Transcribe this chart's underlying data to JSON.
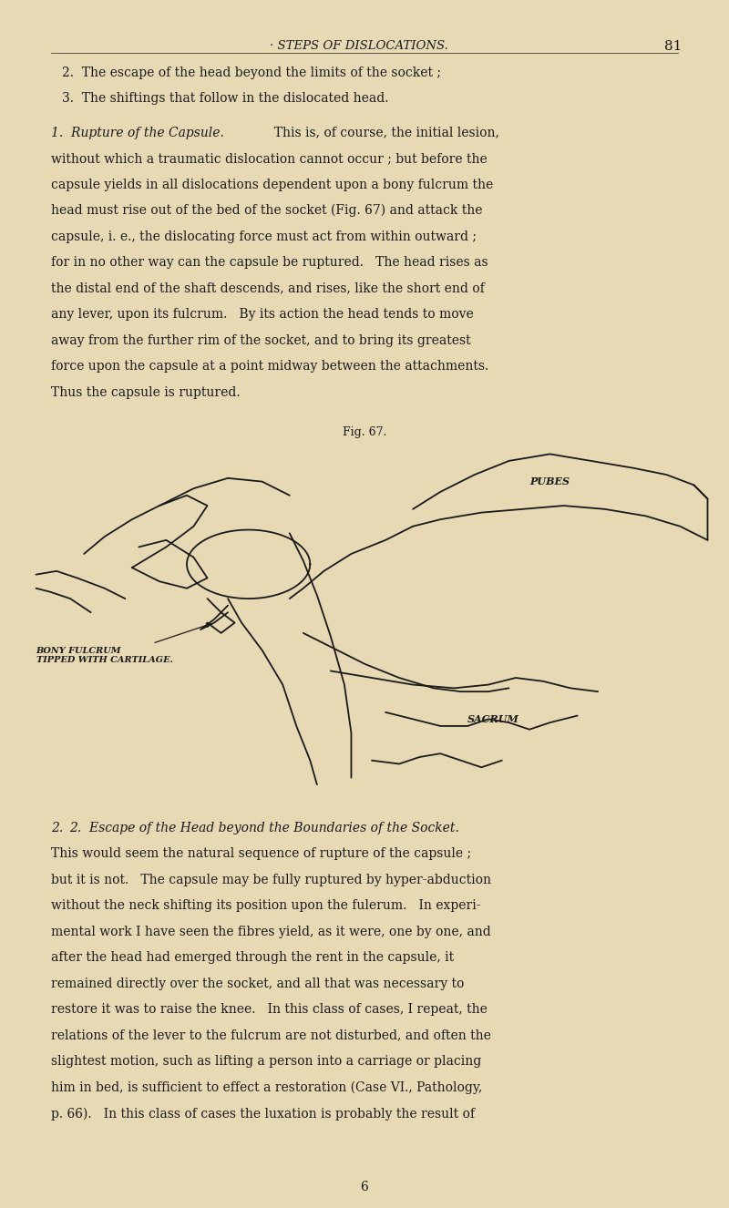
{
  "bg_color": "#e8d9b5",
  "text_color": "#1a1a1a",
  "page_width": 8.0,
  "page_height": 13.26,
  "dpi": 100,
  "header_text": "· STEPS OF DISLOCATIONS.",
  "page_number": "81",
  "line1": "2.  The escape of the head beyond the limits of the socket ;",
  "line2": "3.  The shiftings that follow in the dislocated head.",
  "fig_caption": "Fig. 67.",
  "label_pubes": "PUBES",
  "label_fulcrum": "BONY FULCRUM\nTIPPED WITH CARTILAGE.",
  "label_sacrum": "SACRUM",
  "footer_number": "6",
  "para1_lines": [
    "1.  Rupture of the Capsule.|  This is, of course, the initial lesion,",
    "without which a traumatic dislocation cannot occur ; but before the",
    "capsule yields in all dislocations dependent upon a bony fulcrum the",
    "head must rise out of the bed of the socket (Fig. 67) and attack the",
    "capsule, i. e., the dislocating force must act from within outward ;",
    "for in no other way can the capsule be ruptured.   The head rises as",
    "the distal end of the shaft descends, and rises, like the short end of",
    "any lever, upon its fulcrum.   By its action the head tends to move",
    "away from the further rim of the socket, and to bring its greatest",
    "force upon the capsule at a point midway between the attachments.",
    "Thus the capsule is ruptured."
  ],
  "para2_lines": [
    "2.  Escape of the Head beyond the Boundaries of the Socket.",
    "This would seem the natural sequence of rupture of the capsule ;",
    "but it is not.   The capsule may be fully ruptured by hyper-abduction",
    "without the neck shifting its position upon the fulerum.   In experi-",
    "mental work I have seen the fibres yield, as it were, one by one, and",
    "after the head had emerged through the rent in the capsule, it",
    "remained directly over the socket, and all that was necessary to",
    "restore it was to raise the knee.   In this class of cases, I repeat, the",
    "relations of the lever to the fulcrum are not disturbed, and often the",
    "slightest motion, such as lifting a person into a carriage or placing",
    "him in bed, is sufficient to effect a restoration (Case VI., Pathology,",
    "p. 66).   In this class of cases the luxation is probably the result of"
  ]
}
